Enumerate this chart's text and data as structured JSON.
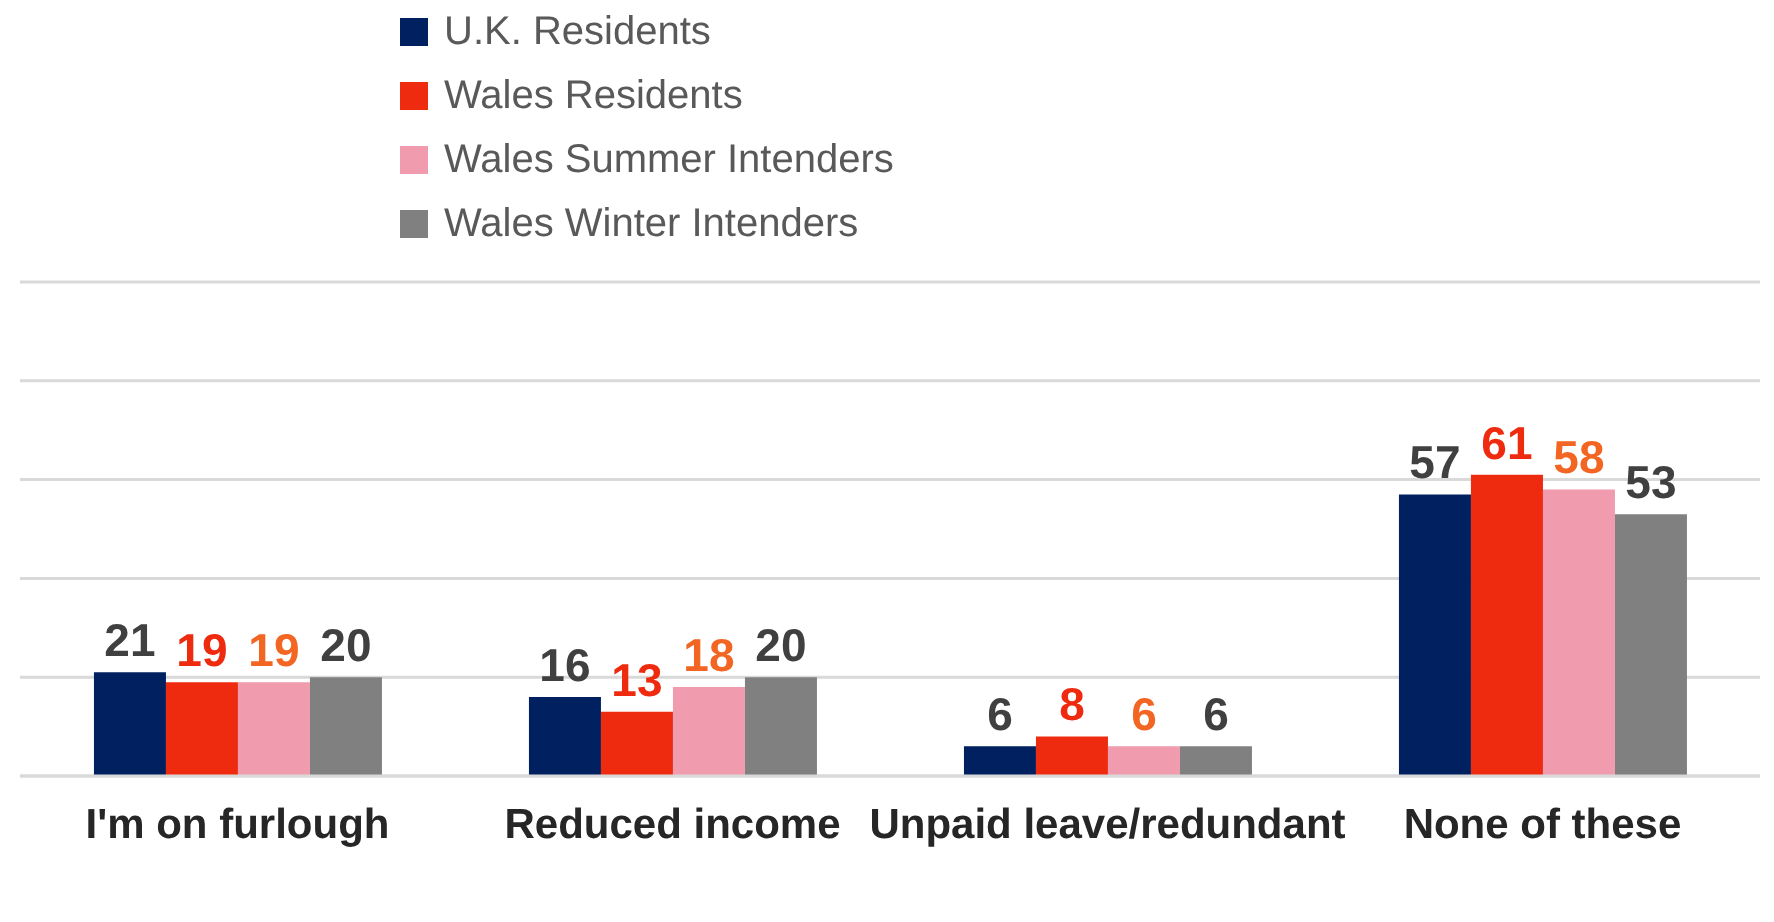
{
  "chart_data": {
    "type": "bar",
    "categories": [
      "I'm on furlough",
      "Reduced income",
      "Unpaid leave/redundant",
      "None of these"
    ],
    "series": [
      {
        "name": "U.K. Residents",
        "color": "#002060",
        "values": [
          21,
          16,
          6,
          57
        ]
      },
      {
        "name": "Wales Residents",
        "color": "#ee2a0f",
        "values": [
          19,
          13,
          8,
          61
        ]
      },
      {
        "name": "Wales Summer Intenders",
        "color": "#f19cae",
        "values": [
          19,
          18,
          6,
          58
        ]
      },
      {
        "name": "Wales Winter Intenders",
        "color": "#808080",
        "values": [
          20,
          20,
          6,
          53
        ]
      }
    ],
    "ylim": [
      0,
      100
    ],
    "yticks": [
      0,
      {
        "value": 20,
        "label": null
      },
      {
        "value": 40,
        "label": null
      },
      {
        "value": 60,
        "label": null
      },
      {
        "value": 80,
        "label": null
      },
      {
        "value": 100,
        "label": null
      }
    ],
    "tick_labels": "x",
    "grid": "y",
    "legend": "top left",
    "data_labels": true
  }
}
